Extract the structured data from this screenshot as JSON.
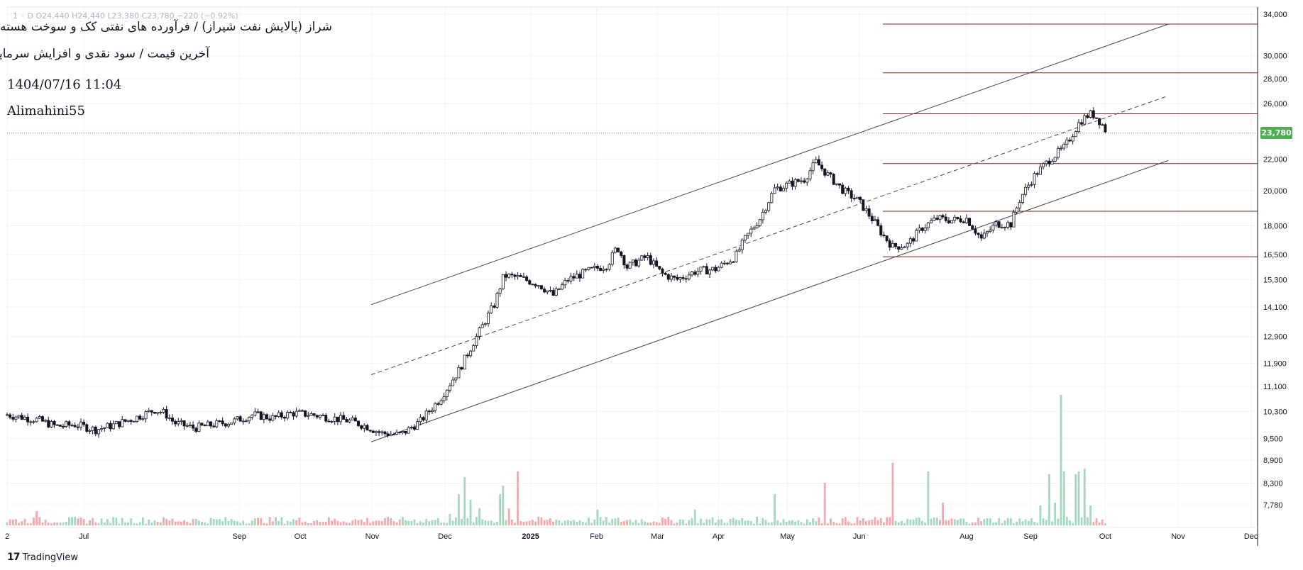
{
  "header": {
    "ohlc_text": "1 ◦ D  O24,440  H24,440  L23,380  C23,780  −220 (−0.92%)",
    "title_line1": "شراز (پالایش نفت شیراز) / فرآورده های نفتی کک و سوخت هسته ای",
    "title_line2": "آخرین قیمت / سود نقدی و افزایش سرمایه /",
    "datetime": "1404/07/16 11:04",
    "author": "Alimahini55"
  },
  "branding": {
    "logo_glyph": "17",
    "name": "TradingView"
  },
  "price_tag": {
    "label": "23,780",
    "value": 23780,
    "color": "#4caf50"
  },
  "colors": {
    "candle": "#131722",
    "vol_up": "#a5d6c0",
    "vol_down": "#f4a7ae",
    "hline": "#8b1a1a",
    "grid": "#f0f3fa"
  },
  "chart_data": {
    "type": "candlestick",
    "scale": "log",
    "y_ticks": [
      34000,
      30000,
      28000,
      26000,
      22000,
      20000,
      18000,
      16500,
      15300,
      14100,
      12900,
      11900,
      11100,
      10300,
      9500,
      8900,
      8300,
      7780
    ],
    "y_tick_labels": [
      "34,000",
      "30,000",
      "28,000",
      "26,000",
      "22,000",
      "20,000",
      "18,000",
      "16,500",
      "15,300",
      "14,100",
      "12,900",
      "11,900",
      "11,100",
      "10,300",
      "9,500",
      "8,900",
      "8,300",
      "7,780"
    ],
    "x_ticks": [
      "2",
      "Jul",
      "Sep",
      "Oct",
      "Nov",
      "Dec",
      "2025",
      "Feb",
      "Mar",
      "Apr",
      "May",
      "Jun",
      "Aug",
      "Sep",
      "Oct",
      "Nov",
      "Dec"
    ],
    "x_tick_days": [
      0,
      78,
      236,
      298,
      371,
      445,
      532,
      599,
      661,
      723,
      793,
      866,
      975,
      1040,
      1116,
      1190,
      1264
    ],
    "last_day": 1118,
    "price_path": [
      [
        0,
        10200
      ],
      [
        30,
        10050
      ],
      [
        50,
        9850
      ],
      [
        70,
        9900
      ],
      [
        90,
        9750
      ],
      [
        110,
        9900
      ],
      [
        130,
        10100
      ],
      [
        150,
        10350
      ],
      [
        160,
        10250
      ],
      [
        170,
        9950
      ],
      [
        190,
        9800
      ],
      [
        210,
        9900
      ],
      [
        230,
        10000
      ],
      [
        250,
        10200
      ],
      [
        270,
        10100
      ],
      [
        290,
        10250
      ],
      [
        310,
        10200
      ],
      [
        330,
        10100
      ],
      [
        350,
        10000
      ],
      [
        365,
        9850
      ],
      [
        380,
        9650
      ],
      [
        400,
        9600
      ],
      [
        420,
        10000
      ],
      [
        440,
        10700
      ],
      [
        460,
        11700
      ],
      [
        480,
        13100
      ],
      [
        495,
        14200
      ],
      [
        505,
        15500
      ],
      [
        520,
        15400
      ],
      [
        540,
        15100
      ],
      [
        555,
        14600
      ],
      [
        570,
        15300
      ],
      [
        590,
        15700
      ],
      [
        610,
        16000
      ],
      [
        620,
        16900
      ],
      [
        630,
        15900
      ],
      [
        650,
        16400
      ],
      [
        665,
        15600
      ],
      [
        680,
        15300
      ],
      [
        700,
        15700
      ],
      [
        720,
        15800
      ],
      [
        740,
        16400
      ],
      [
        750,
        17300
      ],
      [
        765,
        18400
      ],
      [
        780,
        20100
      ],
      [
        795,
        20400
      ],
      [
        810,
        20700
      ],
      [
        822,
        21800
      ],
      [
        835,
        20900
      ],
      [
        850,
        20000
      ],
      [
        865,
        19400
      ],
      [
        880,
        18300
      ],
      [
        890,
        17500
      ],
      [
        900,
        16900
      ],
      [
        915,
        17000
      ],
      [
        930,
        17900
      ],
      [
        945,
        18400
      ],
      [
        960,
        18300
      ],
      [
        975,
        18400
      ],
      [
        990,
        17300
      ],
      [
        1005,
        18100
      ],
      [
        1020,
        18100
      ],
      [
        1030,
        19600
      ],
      [
        1045,
        21000
      ],
      [
        1060,
        22000
      ],
      [
        1075,
        22800
      ],
      [
        1090,
        24600
      ],
      [
        1100,
        25200
      ],
      [
        1105,
        25100
      ],
      [
        1112,
        24500
      ],
      [
        1118,
        23780
      ]
    ],
    "volume_spikes": [
      [
        0,
        0.05
      ],
      [
        30,
        0.25
      ],
      [
        100,
        0.05
      ],
      [
        200,
        0.05
      ],
      [
        300,
        0.05
      ],
      [
        400,
        0.1
      ],
      [
        450,
        0.2
      ],
      [
        460,
        0.55
      ],
      [
        465,
        0.85
      ],
      [
        470,
        0.45
      ],
      [
        480,
        0.3
      ],
      [
        500,
        0.55
      ],
      [
        505,
        0.7
      ],
      [
        510,
        0.3
      ],
      [
        520,
        0.95
      ],
      [
        600,
        0.28
      ],
      [
        700,
        0.28
      ],
      [
        780,
        0.55
      ],
      [
        830,
        0.75
      ],
      [
        900,
        1.1
      ],
      [
        935,
        0.95
      ],
      [
        950,
        0.4
      ],
      [
        1050,
        0.35
      ],
      [
        1060,
        0.9
      ],
      [
        1065,
        0.4
      ],
      [
        1070,
        2.3
      ],
      [
        1075,
        0.95
      ],
      [
        1085,
        0.9
      ],
      [
        1090,
        0.95
      ],
      [
        1095,
        1.0
      ],
      [
        1100,
        0.35
      ]
    ],
    "channel": {
      "upper": {
        "p1": [
          370,
          14200
        ],
        "p2": [
          1180,
          33000
        ]
      },
      "mid": {
        "p1": [
          370,
          11500
        ],
        "p2": [
          1180,
          26600
        ]
      },
      "lower": {
        "p1": [
          370,
          9400
        ],
        "p2": [
          1180,
          21900
        ]
      }
    },
    "horizontal_levels": [
      {
        "price": 33000,
        "from_day": 890
      },
      {
        "price": 28500,
        "from_day": 890
      },
      {
        "price": 25200,
        "from_day": 890
      },
      {
        "price": 21700,
        "from_day": 890
      },
      {
        "price": 18800,
        "from_day": 890
      },
      {
        "price": 16400,
        "from_day": 890
      }
    ]
  }
}
